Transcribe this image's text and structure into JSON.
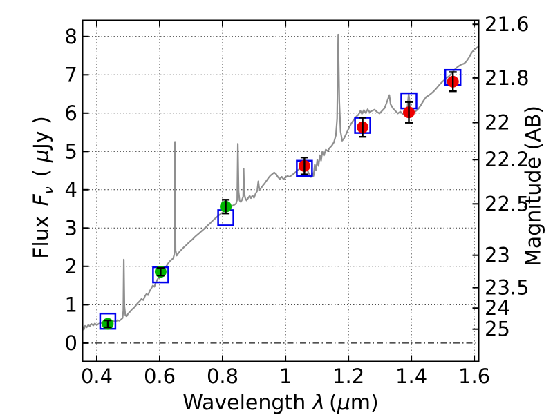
{
  "figure": {
    "background": "#ffffff",
    "frame_color": "#000000",
    "axis": {
      "xlabel": {
        "word": "Wavelength",
        "symbol": "λ",
        "unit_open": "(",
        "unit_mu": "μ",
        "unit_close": "m)"
      },
      "ylabel_left": {
        "word": "Flux",
        "symbol": "F",
        "subscript": "ν",
        "unit_open": "( ",
        "unit_mu": "μ",
        "unit_close": "Jy )"
      },
      "ylabel_right": "Magnitude (AB)"
    }
  },
  "chart_data": {
    "type": "line",
    "xlabel": "Wavelength λ (μm)",
    "ylabel_left": "Flux Fν ( μJy )",
    "ylabel_right": "Magnitude (AB)",
    "xlim": [
      0.355,
      1.614
    ],
    "ylim": [
      -0.48,
      8.42
    ],
    "mag_zeropoint": 23.9,
    "x_ticks": [
      0.4,
      0.6,
      0.8,
      1.0,
      1.2,
      1.4,
      1.6
    ],
    "x_tick_labels": [
      "0.4",
      "0.6",
      "0.8",
      "1",
      "1.2",
      "1.4",
      "1.6"
    ],
    "y_ticks_left": [
      0,
      1,
      2,
      3,
      4,
      5,
      6,
      7,
      8
    ],
    "y_tick_left_labels": [
      "0",
      "1",
      "2",
      "3",
      "4",
      "5",
      "6",
      "7",
      "8"
    ],
    "y_ticks_right": [
      21.6,
      21.8,
      22.0,
      22.2,
      22.5,
      23.0,
      23.5,
      24.0,
      25.0
    ],
    "y_tick_right_labels": [
      "21.6",
      "21.8",
      "22",
      "22.2",
      "22.5",
      "23",
      "23.5",
      "24",
      "25"
    ],
    "grid": {
      "style": "dotted",
      "color": "#000000",
      "zero_line_style": "dash-dot",
      "legend": "none"
    },
    "series": [
      {
        "id": "spectrum",
        "type": "line",
        "color": "#8f8f8f",
        "width": 2.2,
        "points": [
          [
            0.355,
            0.44
          ],
          [
            0.359,
            0.35
          ],
          [
            0.363,
            0.45
          ],
          [
            0.368,
            0.41
          ],
          [
            0.373,
            0.47
          ],
          [
            0.378,
            0.44
          ],
          [
            0.383,
            0.5
          ],
          [
            0.389,
            0.46
          ],
          [
            0.394,
            0.51
          ],
          [
            0.4,
            0.47
          ],
          [
            0.406,
            0.5
          ],
          [
            0.412,
            0.53
          ],
          [
            0.418,
            0.5
          ],
          [
            0.424,
            0.53
          ],
          [
            0.43,
            0.51
          ],
          [
            0.436,
            0.54
          ],
          [
            0.442,
            0.56
          ],
          [
            0.448,
            0.53
          ],
          [
            0.454,
            0.57
          ],
          [
            0.46,
            0.55
          ],
          [
            0.466,
            0.6
          ],
          [
            0.472,
            0.58
          ],
          [
            0.478,
            0.62
          ],
          [
            0.482,
            0.65
          ],
          [
            0.4845,
            0.85
          ],
          [
            0.486,
            2.18
          ],
          [
            0.488,
            0.95
          ],
          [
            0.491,
            0.72
          ],
          [
            0.495,
            0.7
          ],
          [
            0.5,
            0.77
          ],
          [
            0.506,
            0.82
          ],
          [
            0.512,
            0.88
          ],
          [
            0.518,
            0.92
          ],
          [
            0.524,
            0.98
          ],
          [
            0.53,
            1.04
          ],
          [
            0.536,
            1.09
          ],
          [
            0.542,
            1.15
          ],
          [
            0.548,
            1.12
          ],
          [
            0.553,
            1.22
          ],
          [
            0.558,
            1.28
          ],
          [
            0.563,
            1.25
          ],
          [
            0.568,
            1.35
          ],
          [
            0.573,
            1.42
          ],
          [
            0.578,
            1.5
          ],
          [
            0.583,
            1.47
          ],
          [
            0.588,
            1.58
          ],
          [
            0.593,
            1.66
          ],
          [
            0.598,
            1.72
          ],
          [
            0.603,
            1.8
          ],
          [
            0.608,
            1.84
          ],
          [
            0.613,
            1.9
          ],
          [
            0.618,
            1.97
          ],
          [
            0.623,
            2.03
          ],
          [
            0.628,
            2.09
          ],
          [
            0.633,
            2.14
          ],
          [
            0.638,
            2.18
          ],
          [
            0.643,
            2.21
          ],
          [
            0.6465,
            2.32
          ],
          [
            0.6485,
            5.25
          ],
          [
            0.6505,
            2.42
          ],
          [
            0.654,
            2.28
          ],
          [
            0.659,
            2.34
          ],
          [
            0.665,
            2.4
          ],
          [
            0.671,
            2.45
          ],
          [
            0.677,
            2.5
          ],
          [
            0.684,
            2.55
          ],
          [
            0.691,
            2.61
          ],
          [
            0.698,
            2.66
          ],
          [
            0.705,
            2.71
          ],
          [
            0.712,
            2.77
          ],
          [
            0.719,
            2.82
          ],
          [
            0.726,
            2.87
          ],
          [
            0.733,
            2.92
          ],
          [
            0.74,
            2.97
          ],
          [
            0.747,
            3.02
          ],
          [
            0.754,
            3.08
          ],
          [
            0.761,
            3.13
          ],
          [
            0.768,
            3.19
          ],
          [
            0.775,
            3.24
          ],
          [
            0.782,
            3.29
          ],
          [
            0.789,
            3.34
          ],
          [
            0.796,
            3.38
          ],
          [
            0.803,
            3.43
          ],
          [
            0.81,
            3.47
          ],
          [
            0.817,
            3.51
          ],
          [
            0.824,
            3.55
          ],
          [
            0.831,
            3.58
          ],
          [
            0.838,
            3.61
          ],
          [
            0.843,
            3.64
          ],
          [
            0.8465,
            3.75
          ],
          [
            0.8485,
            5.2
          ],
          [
            0.851,
            3.95
          ],
          [
            0.854,
            3.72
          ],
          [
            0.858,
            3.68
          ],
          [
            0.862,
            3.74
          ],
          [
            0.8655,
            3.82
          ],
          [
            0.867,
            4.55
          ],
          [
            0.869,
            3.9
          ],
          [
            0.872,
            3.78
          ],
          [
            0.876,
            3.72
          ],
          [
            0.881,
            3.78
          ],
          [
            0.886,
            3.84
          ],
          [
            0.89,
            3.78
          ],
          [
            0.895,
            3.85
          ],
          [
            0.9,
            3.79
          ],
          [
            0.905,
            3.9
          ],
          [
            0.91,
            3.97
          ],
          [
            0.9135,
            4.22
          ],
          [
            0.917,
            3.99
          ],
          [
            0.922,
            4.04
          ],
          [
            0.928,
            4.11
          ],
          [
            0.934,
            4.17
          ],
          [
            0.94,
            4.24
          ],
          [
            0.946,
            4.31
          ],
          [
            0.952,
            4.37
          ],
          [
            0.958,
            4.41
          ],
          [
            0.964,
            4.45
          ],
          [
            0.97,
            4.41
          ],
          [
            0.976,
            4.33
          ],
          [
            0.982,
            4.28
          ],
          [
            0.988,
            4.34
          ],
          [
            0.994,
            4.27
          ],
          [
            1.0,
            4.32
          ],
          [
            1.006,
            4.36
          ],
          [
            1.013,
            4.34
          ],
          [
            1.02,
            4.38
          ],
          [
            1.028,
            4.43
          ],
          [
            1.036,
            4.49
          ],
          [
            1.044,
            4.54
          ],
          [
            1.052,
            4.59
          ],
          [
            1.06,
            4.62
          ],
          [
            1.068,
            4.53
          ],
          [
            1.075,
            4.41
          ],
          [
            1.081,
            4.33
          ],
          [
            1.085,
            4.45
          ],
          [
            1.089,
            4.36
          ],
          [
            1.093,
            4.66
          ],
          [
            1.097,
            4.51
          ],
          [
            1.101,
            4.78
          ],
          [
            1.105,
            4.62
          ],
          [
            1.109,
            4.9
          ],
          [
            1.113,
            4.76
          ],
          [
            1.117,
            5.0
          ],
          [
            1.122,
            4.89
          ],
          [
            1.128,
            5.05
          ],
          [
            1.134,
            5.01
          ],
          [
            1.14,
            5.09
          ],
          [
            1.147,
            5.15
          ],
          [
            1.154,
            5.24
          ],
          [
            1.16,
            5.42
          ],
          [
            1.164,
            5.85
          ],
          [
            1.1675,
            8.05
          ],
          [
            1.171,
            6.3
          ],
          [
            1.175,
            5.52
          ],
          [
            1.18,
            5.28
          ],
          [
            1.186,
            5.34
          ],
          [
            1.193,
            5.46
          ],
          [
            1.201,
            5.6
          ],
          [
            1.209,
            5.73
          ],
          [
            1.217,
            5.83
          ],
          [
            1.225,
            5.91
          ],
          [
            1.232,
            5.96
          ],
          [
            1.238,
            6.06
          ],
          [
            1.243,
            5.98
          ],
          [
            1.249,
            6.08
          ],
          [
            1.255,
            6.0
          ],
          [
            1.261,
            6.1
          ],
          [
            1.267,
            6.03
          ],
          [
            1.275,
            6.06
          ],
          [
            1.283,
            6.09
          ],
          [
            1.291,
            6.03
          ],
          [
            1.299,
            5.99
          ],
          [
            1.307,
            6.06
          ],
          [
            1.315,
            6.13
          ],
          [
            1.321,
            6.26
          ],
          [
            1.327,
            6.4
          ],
          [
            1.33,
            6.47
          ],
          [
            1.334,
            6.23
          ],
          [
            1.341,
            6.13
          ],
          [
            1.349,
            6.06
          ],
          [
            1.357,
            5.99
          ],
          [
            1.365,
            6.04
          ],
          [
            1.373,
            5.97
          ],
          [
            1.381,
            6.06
          ],
          [
            1.387,
            6.12
          ],
          [
            1.3915,
            6.5
          ],
          [
            1.396,
            6.2
          ],
          [
            1.401,
            6.06
          ],
          [
            1.408,
            6.01
          ],
          [
            1.415,
            6.06
          ],
          [
            1.423,
            6.12
          ],
          [
            1.431,
            6.22
          ],
          [
            1.439,
            6.33
          ],
          [
            1.447,
            6.42
          ],
          [
            1.455,
            6.46
          ],
          [
            1.463,
            6.51
          ],
          [
            1.471,
            6.57
          ],
          [
            1.479,
            6.64
          ],
          [
            1.487,
            6.72
          ],
          [
            1.495,
            6.79
          ],
          [
            1.503,
            6.85
          ],
          [
            1.511,
            6.91
          ],
          [
            1.519,
            6.96
          ],
          [
            1.527,
            7.03
          ],
          [
            1.535,
            7.11
          ],
          [
            1.543,
            7.18
          ],
          [
            1.551,
            7.23
          ],
          [
            1.559,
            7.27
          ],
          [
            1.567,
            7.29
          ],
          [
            1.575,
            7.35
          ],
          [
            1.583,
            7.45
          ],
          [
            1.591,
            7.57
          ],
          [
            1.599,
            7.65
          ],
          [
            1.607,
            7.7
          ],
          [
            1.614,
            7.74
          ]
        ]
      },
      {
        "id": "model_photometry_squares",
        "type": "scatter",
        "marker": "open-square",
        "color": "#0000ee",
        "marker_size": 22,
        "points": [
          [
            0.435,
            0.57
          ],
          [
            0.603,
            1.78
          ],
          [
            0.81,
            3.27
          ],
          [
            1.06,
            4.56
          ],
          [
            1.245,
            5.68
          ],
          [
            1.392,
            6.32
          ],
          [
            1.532,
            6.93
          ]
        ]
      },
      {
        "id": "observed_photometry_green",
        "type": "scatter",
        "marker": "circle",
        "color": "#00b400",
        "error_color": "#000000",
        "marker_radius": 8.5,
        "points": [
          [
            0.435,
            0.5,
            0.09
          ],
          [
            0.603,
            1.86,
            0.1
          ],
          [
            0.81,
            3.56,
            0.18
          ]
        ]
      },
      {
        "id": "observed_photometry_red",
        "type": "scatter",
        "marker": "circle",
        "color": "#ee0000",
        "error_color": "#000000",
        "marker_radius": 8.5,
        "points": [
          [
            1.06,
            4.62,
            0.22
          ],
          [
            1.245,
            5.63,
            0.25
          ],
          [
            1.392,
            6.02,
            0.27
          ],
          [
            1.532,
            6.82,
            0.25
          ]
        ]
      }
    ]
  }
}
